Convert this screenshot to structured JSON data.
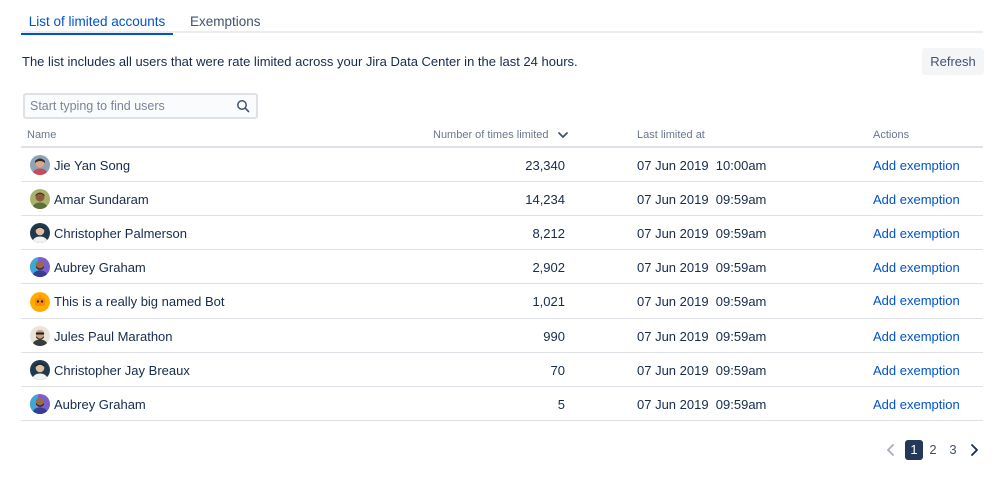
{
  "tabs": [
    {
      "label": "List of limited accounts",
      "active": true
    },
    {
      "label": "Exemptions",
      "active": false
    }
  ],
  "description": "The list includes all users that were rate limited across your Jira Data Center in the last 24 hours.",
  "refresh_label": "Refresh",
  "search": {
    "placeholder": "Start typing to find users",
    "value": "",
    "icon": "search-icon"
  },
  "table": {
    "columns": [
      "Name",
      "Number of times limited",
      "Last limited at",
      "Actions"
    ],
    "sort_icon": "chevron-down-icon",
    "rows": [
      {
        "name": "Jie Yan Song",
        "count": "23,340",
        "last": "07 Jun 2019  10:00am",
        "action": "Add exemption"
      },
      {
        "name": "Amar Sundaram",
        "count": "14,234",
        "last": "07 Jun 2019  09:59am",
        "action": "Add exemption"
      },
      {
        "name": "Christopher Palmerson",
        "count": "8,212",
        "last": "07 Jun 2019  09:59am",
        "action": "Add exemption"
      },
      {
        "name": "Aubrey Graham",
        "count": "2,902",
        "last": "07 Jun 2019  09:59am",
        "action": "Add exemption"
      },
      {
        "name": "This is a really big named Bot",
        "count": "1,021",
        "last": "07 Jun 2019  09:59am",
        "action": "Add exemption"
      },
      {
        "name": "Jules Paul Marathon",
        "count": "990",
        "last": "07 Jun 2019  09:59am",
        "action": "Add exemption"
      },
      {
        "name": "Christopher Jay Breaux",
        "count": "70",
        "last": "07 Jun 2019  09:59am",
        "action": "Add exemption"
      },
      {
        "name": "Aubrey Graham",
        "count": "5",
        "last": "07 Jun 2019  09:59am",
        "action": "Add exemption"
      }
    ]
  },
  "pagination": {
    "pages": [
      "1",
      "2",
      "3"
    ],
    "current": "1",
    "prev_icon": "chevron-left-icon",
    "next_icon": "chevron-right-icon"
  },
  "colors": {
    "primary": "#0052cc",
    "text": "#172b4d",
    "muted": "#6b778c",
    "border": "#dfe1e6",
    "current_page": "#253858"
  }
}
